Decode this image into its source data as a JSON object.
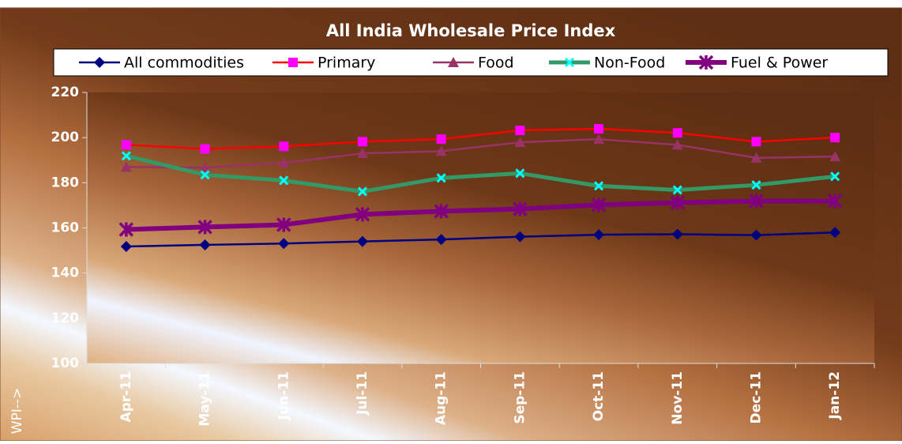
{
  "chart_data": {
    "type": "line",
    "title": "All India Wholesale Price Index",
    "y_label": "WPI-->",
    "categories": [
      "Apr-11",
      "May-11",
      "Jun-11",
      "Jul-11",
      "Aug-11",
      "Sep-11",
      "Oct-11",
      "Nov-11",
      "Dec-11",
      "Jan-12"
    ],
    "series": [
      {
        "name": "All commodities",
        "color": "#000080",
        "marker": "diamond",
        "marker_color": "#000080",
        "line_width": 2.5,
        "values": [
          151.8,
          152.5,
          153.1,
          154.0,
          154.9,
          156.1,
          157.0,
          157.2,
          156.8,
          158.0
        ]
      },
      {
        "name": "Primary",
        "color": "#ff0000",
        "marker": "square",
        "marker_color": "#ff00ff",
        "line_width": 2.5,
        "values": [
          196.8,
          195.0,
          196.1,
          198.2,
          199.3,
          203.2,
          203.9,
          202.1,
          198.2,
          200.0
        ]
      },
      {
        "name": "Food",
        "color": "#993366",
        "marker": "triangle",
        "marker_color": "#993366",
        "line_width": 2.5,
        "values": [
          187.0,
          186.7,
          188.8,
          193.0,
          194.0,
          197.9,
          199.3,
          196.8,
          191.0,
          191.6
        ]
      },
      {
        "name": "Non-Food",
        "color": "#339966",
        "marker": "x",
        "marker_color": "#00ffff",
        "line_width": 5,
        "values": [
          191.9,
          183.5,
          181.0,
          176.1,
          182.1,
          184.2,
          178.6,
          176.8,
          179.0,
          182.8
        ]
      },
      {
        "name": "Fuel & Power",
        "color": "#800080",
        "marker": "star",
        "marker_color": "#800080",
        "line_width": 6,
        "values": [
          159.3,
          160.4,
          161.4,
          166.0,
          167.4,
          168.4,
          170.2,
          171.2,
          171.9,
          171.9
        ]
      }
    ],
    "ylim": [
      100,
      220
    ],
    "yticks": [
      100,
      120,
      140,
      160,
      180,
      200,
      220
    ],
    "grid": false,
    "legend": "top"
  }
}
